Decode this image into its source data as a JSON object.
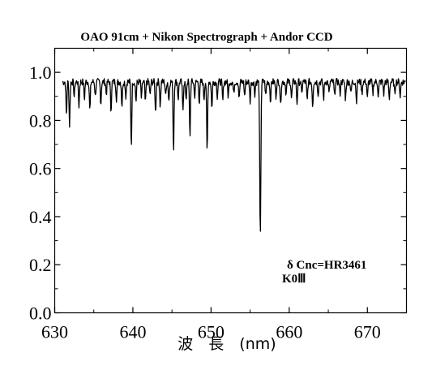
{
  "chart_data": {
    "type": "line",
    "title": "OAO 91cm + Nikon Spectrograph + Andor CCD",
    "xlabel": "波　長　(nm)",
    "ylabel": "",
    "xlim": [
      630,
      675
    ],
    "ylim": [
      0.0,
      1.1
    ],
    "x_ticks": [
      "630",
      "640",
      "650",
      "660",
      "670"
    ],
    "y_ticks": [
      "0.0",
      "0.2",
      "0.4",
      "0.6",
      "0.8",
      "1.0"
    ],
    "annotations": [
      "δ Cnc=HR3461",
      "K0Ⅲ"
    ],
    "grid": false,
    "continuum": 0.96,
    "noise_amplitude": 0.015,
    "absorption_lines": [
      {
        "x": 631.5,
        "depth": 0.14
      },
      {
        "x": 631.9,
        "depth": 0.18
      },
      {
        "x": 632.5,
        "depth": 0.06
      },
      {
        "x": 633.1,
        "depth": 0.1
      },
      {
        "x": 633.8,
        "depth": 0.07
      },
      {
        "x": 634.5,
        "depth": 0.12
      },
      {
        "x": 635.2,
        "depth": 0.06
      },
      {
        "x": 635.9,
        "depth": 0.09
      },
      {
        "x": 636.6,
        "depth": 0.05
      },
      {
        "x": 637.2,
        "depth": 0.12
      },
      {
        "x": 637.9,
        "depth": 0.07
      },
      {
        "x": 638.6,
        "depth": 0.1
      },
      {
        "x": 639.1,
        "depth": 0.06
      },
      {
        "x": 639.8,
        "depth": 0.27
      },
      {
        "x": 640.4,
        "depth": 0.08
      },
      {
        "x": 641.1,
        "depth": 0.07
      },
      {
        "x": 641.6,
        "depth": 0.09
      },
      {
        "x": 642.2,
        "depth": 0.06
      },
      {
        "x": 642.9,
        "depth": 0.13
      },
      {
        "x": 643.5,
        "depth": 0.1
      },
      {
        "x": 644.2,
        "depth": 0.06
      },
      {
        "x": 644.6,
        "depth": 0.08
      },
      {
        "x": 645.2,
        "depth": 0.29
      },
      {
        "x": 645.8,
        "depth": 0.07
      },
      {
        "x": 646.4,
        "depth": 0.12
      },
      {
        "x": 646.8,
        "depth": 0.08
      },
      {
        "x": 647.3,
        "depth": 0.23
      },
      {
        "x": 647.9,
        "depth": 0.06
      },
      {
        "x": 648.5,
        "depth": 0.09
      },
      {
        "x": 649.1,
        "depth": 0.07
      },
      {
        "x": 649.5,
        "depth": 0.3
      },
      {
        "x": 650.1,
        "depth": 0.11
      },
      {
        "x": 650.8,
        "depth": 0.06
      },
      {
        "x": 651.5,
        "depth": 0.08
      },
      {
        "x": 652.2,
        "depth": 0.06
      },
      {
        "x": 652.9,
        "depth": 0.05
      },
      {
        "x": 653.6,
        "depth": 0.07
      },
      {
        "x": 654.3,
        "depth": 0.06
      },
      {
        "x": 655.0,
        "depth": 0.08
      },
      {
        "x": 655.6,
        "depth": 0.05
      },
      {
        "x": 656.3,
        "depth": 0.66
      },
      {
        "x": 657.0,
        "depth": 0.06
      },
      {
        "x": 657.6,
        "depth": 0.08
      },
      {
        "x": 658.3,
        "depth": 0.06
      },
      {
        "x": 658.9,
        "depth": 0.1
      },
      {
        "x": 659.6,
        "depth": 0.05
      },
      {
        "x": 660.3,
        "depth": 0.07
      },
      {
        "x": 661.0,
        "depth": 0.09
      },
      {
        "x": 661.6,
        "depth": 0.05
      },
      {
        "x": 662.3,
        "depth": 0.08
      },
      {
        "x": 663.0,
        "depth": 0.1
      },
      {
        "x": 663.7,
        "depth": 0.05
      },
      {
        "x": 664.4,
        "depth": 0.07
      },
      {
        "x": 665.1,
        "depth": 0.05
      },
      {
        "x": 665.8,
        "depth": 0.06
      },
      {
        "x": 666.5,
        "depth": 0.05
      },
      {
        "x": 667.2,
        "depth": 0.07
      },
      {
        "x": 667.9,
        "depth": 0.05
      },
      {
        "x": 668.6,
        "depth": 0.08
      },
      {
        "x": 669.3,
        "depth": 0.05
      },
      {
        "x": 670.0,
        "depth": 0.07
      },
      {
        "x": 670.7,
        "depth": 0.05
      },
      {
        "x": 671.4,
        "depth": 0.06
      },
      {
        "x": 672.1,
        "depth": 0.05
      },
      {
        "x": 672.8,
        "depth": 0.07
      },
      {
        "x": 673.5,
        "depth": 0.05
      },
      {
        "x": 674.2,
        "depth": 0.06
      }
    ],
    "series": [
      {
        "x_start": 631.0,
        "x_end": 674.9
      }
    ]
  }
}
